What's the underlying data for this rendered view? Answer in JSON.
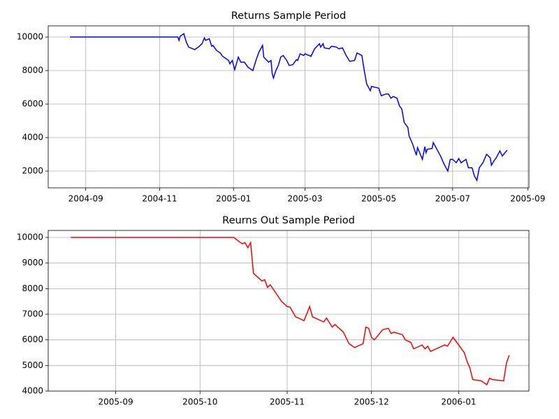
{
  "chart_data": [
    {
      "type": "line",
      "title": "Returns Sample Period",
      "color": "#0000ff",
      "grid": true,
      "xlim": [
        "2004-08-01",
        "2005-09-02"
      ],
      "ylim": [
        1000,
        10667
      ],
      "xticks": [
        {
          "value": "2004-09-01",
          "label": "2004-09"
        },
        {
          "value": "2004-11-01",
          "label": "2004-11"
        },
        {
          "value": "2005-01-01",
          "label": "2005-01"
        },
        {
          "value": "2005-03-01",
          "label": "2005-03"
        },
        {
          "value": "2005-05-01",
          "label": "2005-05"
        },
        {
          "value": "2005-07-01",
          "label": "2005-07"
        },
        {
          "value": "2005-09-01",
          "label": "2005-09"
        }
      ],
      "yticks": [
        2000,
        4000,
        6000,
        8000,
        10000
      ],
      "x": [
        "2004-08-19",
        "2004-11-16",
        "2004-11-17",
        "2004-11-18",
        "2004-11-21",
        "2004-11-23",
        "2004-11-25",
        "2004-11-30",
        "2004-12-03",
        "2004-12-06",
        "2004-12-08",
        "2004-12-09",
        "2004-12-12",
        "2004-12-14",
        "2004-12-15",
        "2004-12-18",
        "2004-12-21",
        "2004-12-23",
        "2004-12-28",
        "2004-12-29",
        "2004-12-31",
        "2005-01-02",
        "2005-01-05",
        "2005-01-07",
        "2005-01-10",
        "2005-01-13",
        "2005-01-17",
        "2005-01-20",
        "2005-01-22",
        "2005-01-25",
        "2005-01-26",
        "2005-01-30",
        "2005-02-01",
        "2005-02-02",
        "2005-02-03",
        "2005-02-05",
        "2005-02-07",
        "2005-02-09",
        "2005-02-11",
        "2005-02-14",
        "2005-02-16",
        "2005-02-19",
        "2005-02-22",
        "2005-02-23",
        "2005-02-25",
        "2005-02-28",
        "2005-03-01",
        "2005-03-06",
        "2005-03-09",
        "2005-03-13",
        "2005-03-14",
        "2005-03-16",
        "2005-03-17",
        "2005-03-21",
        "2005-03-23",
        "2005-03-27",
        "2005-03-29",
        "2005-04-01",
        "2005-04-04",
        "2005-04-07",
        "2005-04-11",
        "2005-04-13",
        "2005-04-17",
        "2005-04-19",
        "2005-04-21",
        "2005-04-24",
        "2005-04-25",
        "2005-05-01",
        "2005-05-03",
        "2005-05-07",
        "2005-05-09",
        "2005-05-11",
        "2005-05-13",
        "2005-05-16",
        "2005-05-18",
        "2005-05-20",
        "2005-05-22",
        "2005-05-25",
        "2005-05-26",
        "2005-05-29",
        "2005-06-01",
        "2005-06-02",
        "2005-06-06",
        "2005-06-08",
        "2005-06-09",
        "2005-06-10",
        "2005-06-14",
        "2005-06-15",
        "2005-06-18",
        "2005-06-21",
        "2005-06-24",
        "2005-06-27",
        "2005-06-29",
        "2005-07-01",
        "2005-07-04",
        "2005-07-06",
        "2005-07-08",
        "2005-07-12",
        "2005-07-14",
        "2005-07-17",
        "2005-07-19",
        "2005-07-21",
        "2005-07-23",
        "2005-07-26",
        "2005-07-29",
        "2005-08-01",
        "2005-08-02",
        "2005-08-04",
        "2005-08-06",
        "2005-08-09",
        "2005-08-11",
        "2005-08-15"
      ],
      "values": [
        10000,
        10000,
        9800,
        10050,
        10200,
        9700,
        9400,
        9250,
        9400,
        9600,
        9950,
        9800,
        9900,
        9450,
        9500,
        9200,
        9050,
        8850,
        8600,
        8400,
        8600,
        8050,
        8800,
        8500,
        8500,
        8200,
        8000,
        8700,
        9100,
        9500,
        8800,
        8500,
        8600,
        7800,
        7550,
        8000,
        8300,
        8800,
        8900,
        8600,
        8300,
        8350,
        8650,
        8600,
        9000,
        8900,
        9000,
        8850,
        9300,
        9600,
        9400,
        9600,
        9350,
        9300,
        9450,
        9400,
        9300,
        9350,
        8900,
        8550,
        8600,
        9050,
        8900,
        8000,
        7200,
        6800,
        7050,
        6950,
        6500,
        6600,
        6600,
        6350,
        6450,
        6350,
        5900,
        5700,
        4900,
        4600,
        4100,
        3600,
        2950,
        3400,
        2700,
        3450,
        3100,
        3300,
        3350,
        3700,
        3300,
        2900,
        2400,
        2000,
        2700,
        2700,
        2500,
        2750,
        2500,
        2700,
        2200,
        2200,
        1700,
        1450,
        2200,
        2500,
        3000,
        2800,
        2350,
        2600,
        2800,
        3200,
        2900,
        3250
      ]
    },
    {
      "type": "line",
      "title": "Reurns Out Sample Period",
      "color": "#ff0000",
      "grid": true,
      "xlim": [
        "2005-08-08",
        "2006-01-26"
      ],
      "ylim": [
        4000,
        10273
      ],
      "xticks": [
        {
          "value": "2005-09-01",
          "label": "2005-09"
        },
        {
          "value": "2005-10-01",
          "label": "2005-10"
        },
        {
          "value": "2005-11-01",
          "label": "2005-11"
        },
        {
          "value": "2005-12-01",
          "label": "2005-12"
        },
        {
          "value": "2006-01-01",
          "label": "2006-01"
        }
      ],
      "yticks": [
        4000,
        5000,
        6000,
        7000,
        8000,
        9000,
        10000
      ],
      "x": [
        "2005-08-16",
        "2005-10-13",
        "2005-10-16",
        "2005-10-17",
        "2005-10-18",
        "2005-10-19",
        "2005-10-20",
        "2005-10-23",
        "2005-10-24",
        "2005-10-25",
        "2005-10-26",
        "2005-10-30",
        "2005-11-01",
        "2005-11-02",
        "2005-11-04",
        "2005-11-07",
        "2005-11-09",
        "2005-11-10",
        "2005-11-14",
        "2005-11-15",
        "2005-11-17",
        "2005-11-18",
        "2005-11-21",
        "2005-11-23",
        "2005-11-25",
        "2005-11-28",
        "2005-11-29",
        "2005-11-30",
        "2005-12-01",
        "2005-12-02",
        "2005-12-05",
        "2005-12-07",
        "2005-12-08",
        "2005-12-09",
        "2005-12-12",
        "2005-12-13",
        "2005-12-15",
        "2005-12-16",
        "2005-12-19",
        "2005-12-20",
        "2005-12-21",
        "2005-12-22",
        "2005-12-27",
        "2005-12-28",
        "2005-12-30",
        "2006-01-03",
        "2006-01-04",
        "2006-01-05",
        "2006-01-06",
        "2006-01-09",
        "2006-01-11",
        "2006-01-12",
        "2006-01-13",
        "2006-01-17",
        "2006-01-18",
        "2006-01-19"
      ],
      "values": [
        10000,
        10000,
        9750,
        9800,
        9600,
        9800,
        8600,
        8300,
        8350,
        8050,
        8150,
        7500,
        7300,
        7280,
        6900,
        6750,
        7300,
        6900,
        6700,
        6850,
        6500,
        6600,
        6300,
        5850,
        5700,
        5850,
        6500,
        6450,
        6100,
        6000,
        6400,
        6450,
        6250,
        6300,
        6200,
        6000,
        5900,
        5650,
        5800,
        5650,
        5750,
        5550,
        5800,
        5750,
        6100,
        5500,
        5150,
        4900,
        4450,
        4400,
        4250,
        4500,
        4450,
        4400,
        5100,
        5400
      ]
    }
  ]
}
